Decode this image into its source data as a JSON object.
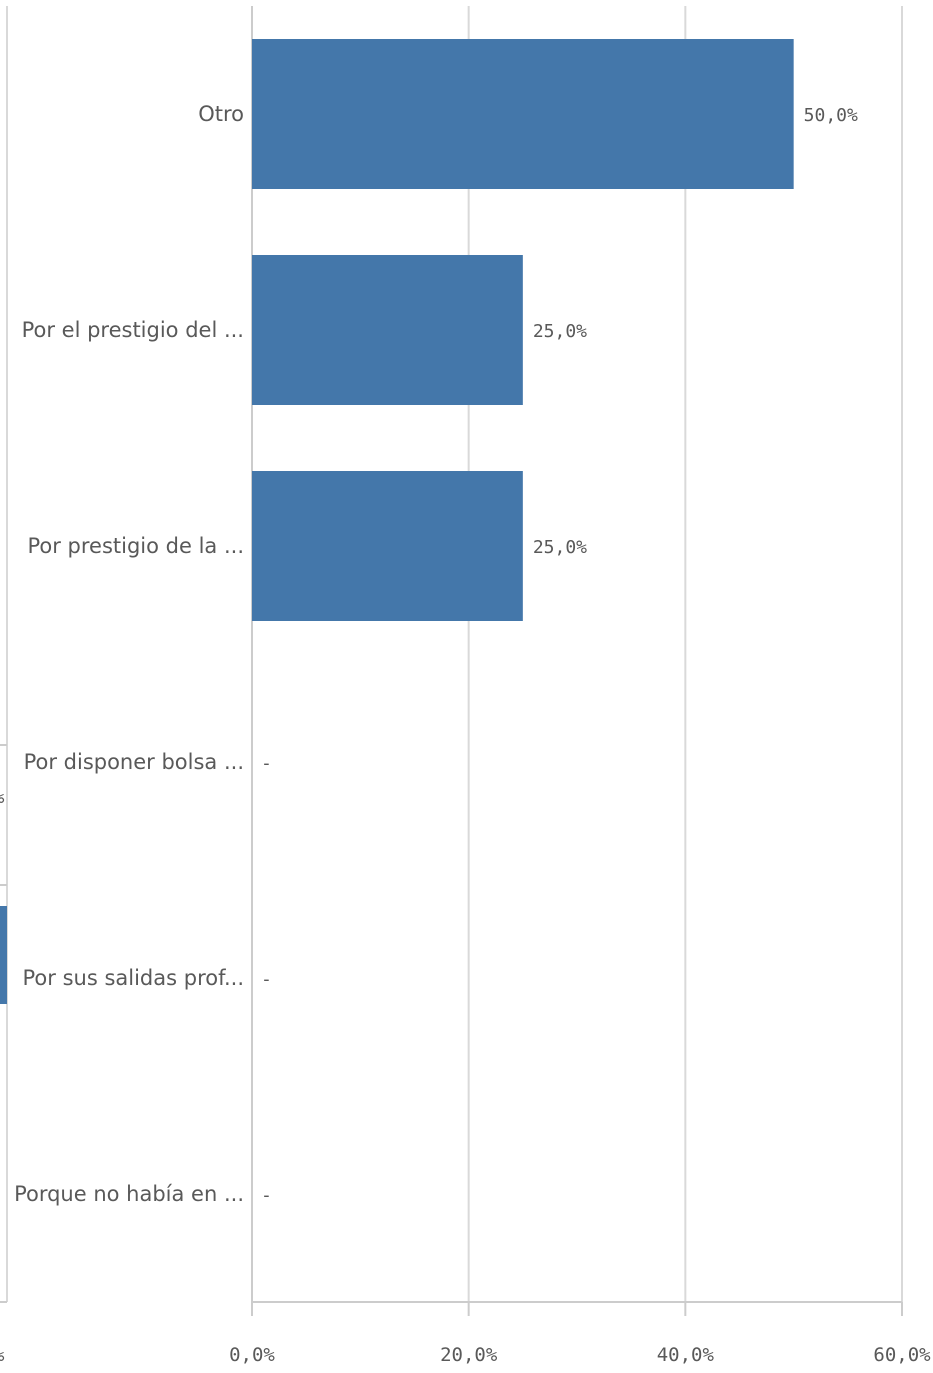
{
  "chart_data": {
    "type": "bar",
    "orientation": "horizontal",
    "categories": [
      "Otro",
      "Por el prestigio del ...",
      "Por prestigio de la ...",
      "Por disponer bolsa ...",
      "Por sus salidas prof...",
      "Porque no había en ..."
    ],
    "values": [
      50.0,
      25.0,
      25.0,
      null,
      null,
      null
    ],
    "data_labels": [
      "50,0%",
      "25,0%",
      "25,0%",
      "-",
      "-",
      "-"
    ],
    "x_ticks": [
      0,
      20,
      40,
      60
    ],
    "x_tick_labels": [
      "0,0%",
      "20,0%",
      "40,0%",
      "60,0%"
    ],
    "xlim": [
      0,
      60
    ],
    "grid": true,
    "bar_color": "#4477aa",
    "left_partial_panel": {
      "tick_label": "%",
      "axis_label": "%",
      "bar_color": "#4477aa"
    }
  }
}
